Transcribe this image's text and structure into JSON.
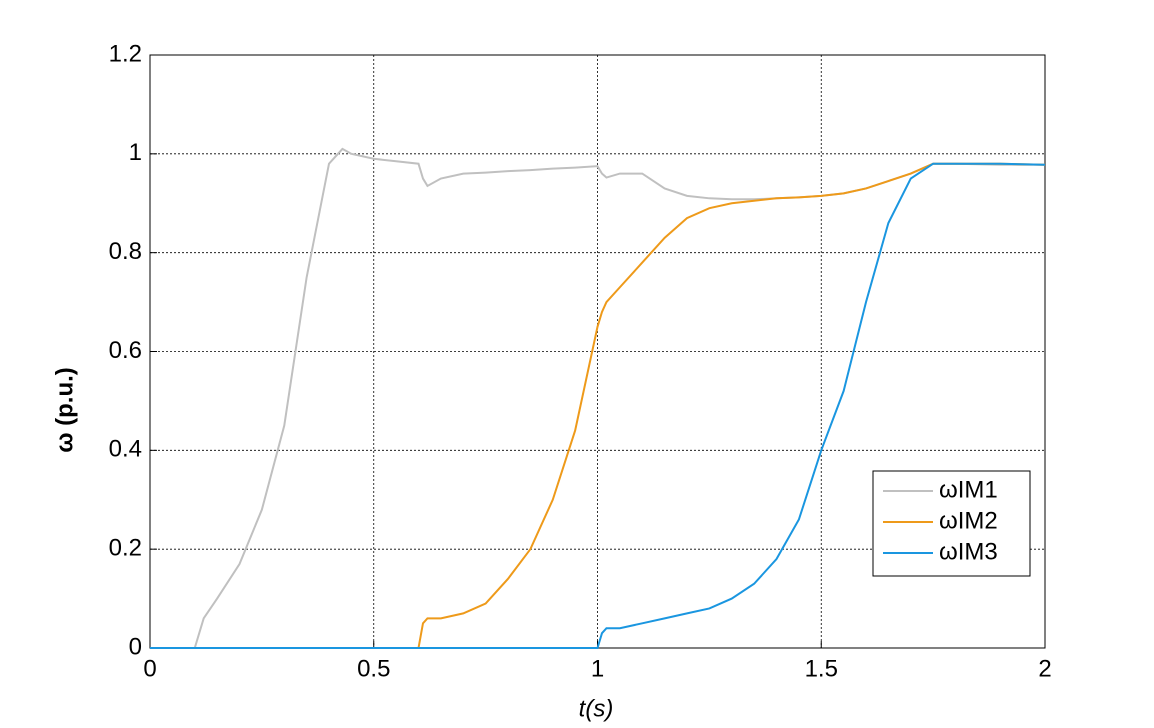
{
  "chart_data": {
    "type": "line",
    "x_label": "t(s)",
    "y_label": "ω (p.u.)",
    "x": [
      0,
      0.1,
      0.12,
      0.15,
      0.2,
      0.25,
      0.3,
      0.35,
      0.4,
      0.43,
      0.45,
      0.5,
      0.55,
      0.6,
      0.61,
      0.62,
      0.65,
      0.7,
      0.75,
      0.8,
      0.85,
      0.9,
      0.95,
      1.0,
      1.01,
      1.02,
      1.05,
      1.1,
      1.15,
      1.2,
      1.25,
      1.3,
      1.35,
      1.4,
      1.45,
      1.5,
      1.55,
      1.6,
      1.65,
      1.7,
      1.75,
      1.8,
      1.9,
      2.0
    ],
    "series": [
      {
        "name": "ωIM1",
        "color": "#c0c0c0",
        "values": [
          0,
          0,
          0.06,
          0.1,
          0.17,
          0.28,
          0.45,
          0.75,
          0.98,
          1.01,
          1.0,
          0.99,
          0.985,
          0.98,
          0.95,
          0.935,
          0.95,
          0.96,
          0.962,
          0.965,
          0.967,
          0.97,
          0.972,
          0.975,
          0.96,
          0.952,
          0.96,
          0.96,
          0.93,
          0.915,
          0.91,
          0.908,
          0.908,
          0.91,
          0.912,
          0.915,
          0.92,
          0.93,
          0.945,
          0.96,
          0.98,
          0.98,
          0.978,
          0.978
        ]
      },
      {
        "name": "ωIM2",
        "color": "#ee9a1a",
        "values": [
          0,
          0,
          0,
          0,
          0,
          0,
          0,
          0,
          0,
          0,
          0,
          0,
          0,
          0,
          0.05,
          0.06,
          0.06,
          0.07,
          0.09,
          0.14,
          0.2,
          0.3,
          0.44,
          0.65,
          0.68,
          0.7,
          0.73,
          0.78,
          0.83,
          0.87,
          0.89,
          0.9,
          0.905,
          0.91,
          0.912,
          0.915,
          0.92,
          0.93,
          0.945,
          0.96,
          0.98,
          0.98,
          0.98,
          0.978
        ]
      },
      {
        "name": "ωIM3",
        "color": "#1a96e0",
        "values": [
          0,
          0,
          0,
          0,
          0,
          0,
          0,
          0,
          0,
          0,
          0,
          0,
          0,
          0,
          0,
          0,
          0,
          0,
          0,
          0,
          0,
          0,
          0,
          0,
          0.03,
          0.04,
          0.04,
          0.05,
          0.06,
          0.07,
          0.08,
          0.1,
          0.13,
          0.18,
          0.26,
          0.4,
          0.52,
          0.7,
          0.86,
          0.95,
          0.98,
          0.98,
          0.98,
          0.978
        ]
      }
    ],
    "xlim": [
      0,
      2
    ],
    "xticks": [
      0,
      0.5,
      1,
      1.5,
      2
    ],
    "ylim": [
      0,
      1.2
    ],
    "yticks": [
      0,
      0.2,
      0.4,
      0.6,
      0.8,
      1,
      1.2
    ],
    "grid": true,
    "legend": "lower right"
  }
}
